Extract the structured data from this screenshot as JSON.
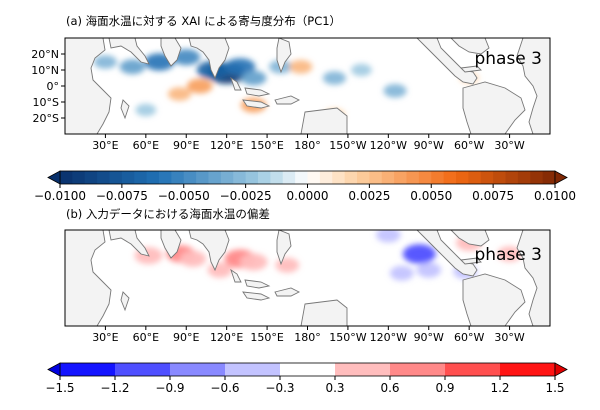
{
  "chart_data": [
    {
      "type": "heatmap",
      "id": "a",
      "title": "(a) 海面水温に対する XAI による寄与度分布（PC1）",
      "annotation": "phase 3",
      "xticklabels": [
        "30°E",
        "60°E",
        "90°E",
        "120°E",
        "150°E",
        "180°",
        "150°W",
        "120°W",
        "90°W",
        "60°W",
        "30°W"
      ],
      "yticklabels": [
        "20°N",
        "10°N",
        "0°",
        "10°S",
        "20°S"
      ],
      "xlim_lon_east": [
        0,
        360
      ],
      "ylim_lat": [
        -30,
        30
      ],
      "colorbar": {
        "min": -0.01,
        "max": 0.01,
        "ticks": [
          "−0.0100",
          "−0.0075",
          "−0.0050",
          "−0.0025",
          "0.0000",
          "0.0025",
          "0.0050",
          "0.0075",
          "0.0100"
        ],
        "colormap": "blue-white-orange",
        "extend": "both"
      },
      "features": [
        {
          "lon": 120,
          "lat": 8,
          "value": -0.0095
        },
        {
          "lon": 110,
          "lat": 10,
          "value": -0.007
        },
        {
          "lon": 130,
          "lat": 12,
          "value": -0.006
        },
        {
          "lon": 90,
          "lat": 18,
          "value": -0.005
        },
        {
          "lon": 70,
          "lat": 15,
          "value": -0.006
        },
        {
          "lon": 50,
          "lat": 12,
          "value": -0.004
        },
        {
          "lon": 140,
          "lat": 5,
          "value": -0.004
        },
        {
          "lon": 160,
          "lat": 12,
          "value": -0.003
        },
        {
          "lon": 200,
          "lat": 5,
          "value": -0.003
        },
        {
          "lon": 220,
          "lat": 10,
          "value": -0.002
        },
        {
          "lon": 245,
          "lat": -3,
          "value": -0.003
        },
        {
          "lon": 60,
          "lat": -15,
          "value": -0.002
        },
        {
          "lon": 30,
          "lat": 15,
          "value": -0.003
        },
        {
          "lon": 100,
          "lat": 0,
          "value": 0.004
        },
        {
          "lon": 85,
          "lat": -5,
          "value": 0.003
        },
        {
          "lon": 140,
          "lat": -12,
          "value": 0.004
        },
        {
          "lon": 175,
          "lat": 12,
          "value": 0.003
        },
        {
          "lon": 200,
          "lat": -18,
          "value": 0.002
        },
        {
          "lon": 300,
          "lat": 5,
          "value": 0.0015
        }
      ]
    },
    {
      "type": "heatmap",
      "id": "b",
      "title": "(b) 入力データにおける海面水温の偏差",
      "annotation": "phase 3",
      "xticklabels": [
        "30°E",
        "60°E",
        "90°E",
        "120°E",
        "150°E",
        "180°",
        "150°W",
        "120°W",
        "90°W",
        "60°W",
        "30°W"
      ],
      "xlim_lon_east": [
        0,
        360
      ],
      "ylim_lat": [
        -30,
        30
      ],
      "colorbar": {
        "min": -1.5,
        "max": 1.5,
        "ticks": [
          "−1.5",
          "−1.2",
          "−0.9",
          "−0.6",
          "−0.3",
          "0.3",
          "0.6",
          "0.9",
          "1.2",
          "1.5"
        ],
        "levels": [
          -1.5,
          -1.2,
          -0.9,
          -0.6,
          -0.3,
          0.3,
          0.6,
          0.9,
          1.2,
          1.5
        ],
        "colormap": "bwr",
        "extend": "both"
      },
      "features": [
        {
          "lon": 62,
          "lat": 14,
          "value": 0.6
        },
        {
          "lon": 86,
          "lat": 15,
          "value": 0.65
        },
        {
          "lon": 95,
          "lat": 12,
          "value": 0.5
        },
        {
          "lon": 130,
          "lat": 12,
          "value": 0.8
        },
        {
          "lon": 140,
          "lat": 10,
          "value": 0.6
        },
        {
          "lon": 115,
          "lat": 5,
          "value": 0.4
        },
        {
          "lon": 165,
          "lat": 8,
          "value": 0.35
        },
        {
          "lon": 300,
          "lat": 22,
          "value": 0.5
        },
        {
          "lon": 330,
          "lat": 15,
          "value": 0.4
        },
        {
          "lon": 263,
          "lat": 15,
          "value": -0.9
        },
        {
          "lon": 270,
          "lat": 5,
          "value": -0.4
        },
        {
          "lon": 240,
          "lat": 27,
          "value": -0.4
        },
        {
          "lon": 297,
          "lat": 4,
          "value": -0.35
        },
        {
          "lon": 250,
          "lat": 3,
          "value": -0.35
        }
      ]
    }
  ]
}
